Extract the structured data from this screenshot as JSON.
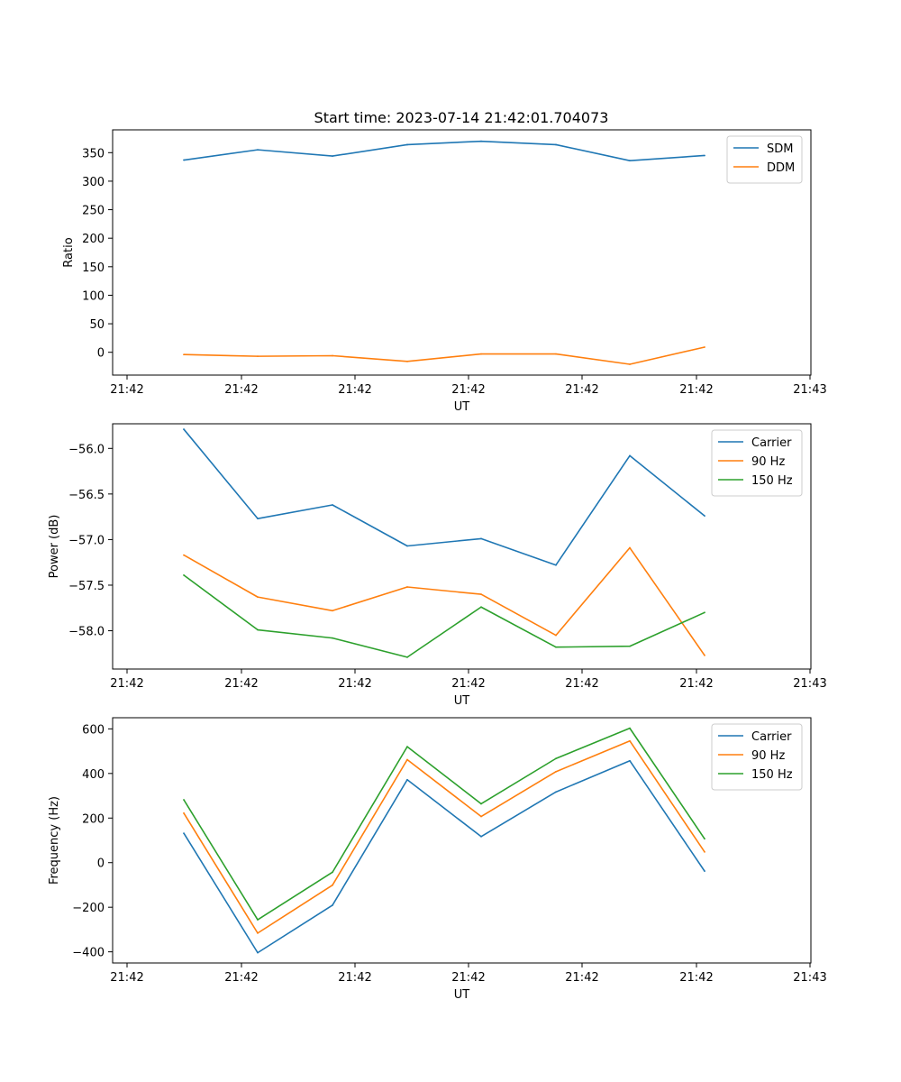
{
  "figure": {
    "title": "Start time: 2023-07-14 21:42:01.704073"
  },
  "chart_data": [
    {
      "type": "line",
      "ylabel": "Ratio",
      "xlabel": "UT",
      "x_tick_labels": [
        "21:42",
        "21:42",
        "21:42",
        "21:42",
        "21:42",
        "21:42",
        "21:43"
      ],
      "y_ticks": [
        0,
        50,
        100,
        150,
        200,
        250,
        300,
        350
      ],
      "y_tick_labels": [
        "0",
        "50",
        "100",
        "150",
        "200",
        "250",
        "300",
        "350"
      ],
      "ylim": [
        -40,
        390
      ],
      "legend_position": "top-right",
      "series": [
        {
          "name": "SDM",
          "color": "#1f77b4",
          "values": [
            337,
            355,
            344,
            364,
            370,
            364,
            336,
            345
          ]
        },
        {
          "name": "DDM",
          "color": "#ff7f0e",
          "values": [
            -4,
            -7,
            -6,
            -16,
            -3,
            -3,
            -21,
            9
          ]
        }
      ]
    },
    {
      "type": "line",
      "ylabel": "Power (dB)",
      "xlabel": "UT",
      "x_tick_labels": [
        "21:42",
        "21:42",
        "21:42",
        "21:42",
        "21:42",
        "21:42",
        "21:43"
      ],
      "y_ticks": [
        -58.0,
        -57.5,
        -57.0,
        -56.5,
        -56.0
      ],
      "y_tick_labels": [
        "−58.0",
        "−57.5",
        "−57.0",
        "−56.5",
        "−56.0"
      ],
      "ylim": [
        -58.42,
        -55.73
      ],
      "legend_position": "top-right",
      "series": [
        {
          "name": "Carrier",
          "color": "#1f77b4",
          "values": [
            -55.79,
            -56.77,
            -56.62,
            -57.07,
            -56.99,
            -57.28,
            -56.08,
            -56.74
          ]
        },
        {
          "name": "90 Hz",
          "color": "#ff7f0e",
          "values": [
            -57.17,
            -57.63,
            -57.78,
            -57.52,
            -57.6,
            -58.05,
            -57.09,
            -58.27
          ]
        },
        {
          "name": "150 Hz",
          "color": "#2ca02c",
          "values": [
            -57.39,
            -57.99,
            -58.08,
            -58.29,
            -57.74,
            -58.18,
            -58.17,
            -57.8
          ]
        }
      ]
    },
    {
      "type": "line",
      "ylabel": "Frequency (Hz)",
      "xlabel": "UT",
      "x_tick_labels": [
        "21:42",
        "21:42",
        "21:42",
        "21:42",
        "21:42",
        "21:42",
        "21:43"
      ],
      "y_ticks": [
        -400,
        -200,
        0,
        200,
        400,
        600
      ],
      "y_tick_labels": [
        "−400",
        "−200",
        "0",
        "200",
        "400",
        "600"
      ],
      "ylim": [
        -450,
        650
      ],
      "legend_position": "top-right",
      "series": [
        {
          "name": "Carrier",
          "color": "#1f77b4",
          "values": [
            132,
            -404,
            -191,
            372,
            117,
            317,
            457,
            -38
          ]
        },
        {
          "name": "90 Hz",
          "color": "#ff7f0e",
          "values": [
            222,
            -316,
            -101,
            462,
            207,
            408,
            546,
            48
          ]
        },
        {
          "name": "150 Hz",
          "color": "#2ca02c",
          "values": [
            282,
            -256,
            -43,
            520,
            264,
            467,
            603,
            107
          ]
        }
      ]
    }
  ]
}
